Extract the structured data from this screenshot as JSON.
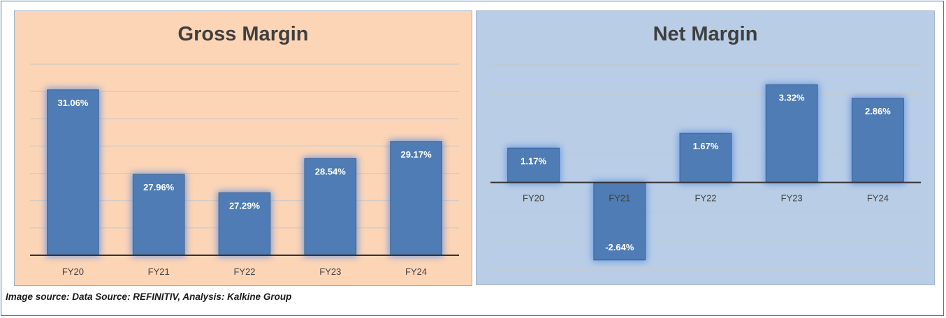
{
  "chart_data": [
    {
      "type": "bar",
      "title": "Gross Margin",
      "categories": [
        "FY20",
        "FY21",
        "FY22",
        "FY23",
        "FY24"
      ],
      "values": [
        31.06,
        27.96,
        27.29,
        28.54,
        29.17
      ],
      "labels": [
        "31.06%",
        "27.96%",
        "27.29%",
        "28.54%",
        "29.17%"
      ],
      "ylim": [
        25,
        32
      ],
      "grid": true,
      "bar_color": "#4f7cb4",
      "background": "#fcd4b6"
    },
    {
      "type": "bar",
      "title": "Net Margin",
      "categories": [
        "FY20",
        "FY21",
        "FY22",
        "FY23",
        "FY24"
      ],
      "values": [
        1.17,
        -2.64,
        1.67,
        3.32,
        2.86
      ],
      "labels": [
        "1.17%",
        "-2.64%",
        "1.67%",
        "3.32%",
        "2.86%"
      ],
      "ylim": [
        -3,
        4
      ],
      "grid": true,
      "bar_color": "#4f7cb4",
      "background": "#b9cde6"
    }
  ],
  "caption": "Image source: Data Source: REFINITIV, Analysis: Kalkine Group"
}
